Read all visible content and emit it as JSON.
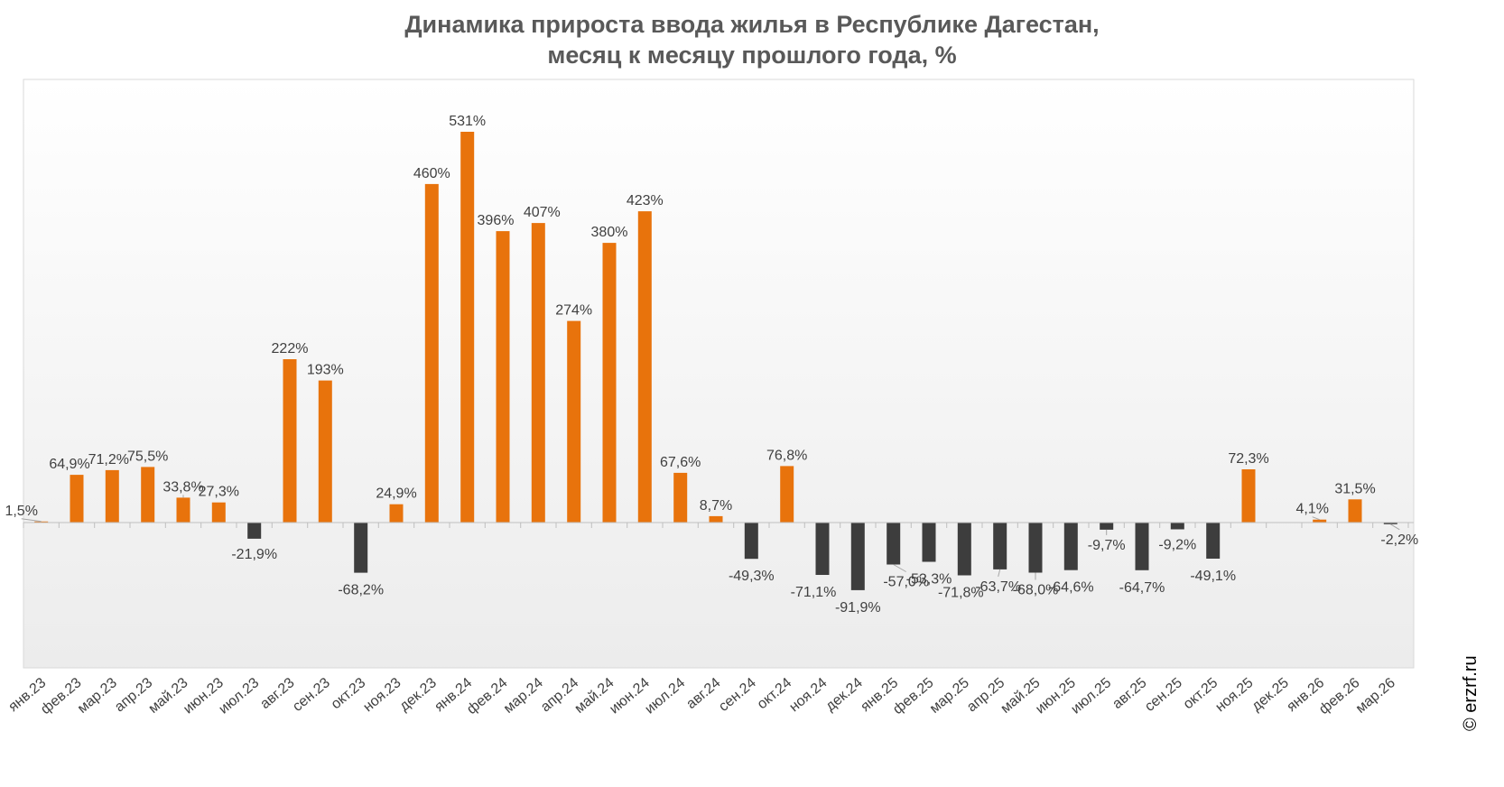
{
  "title_line1": "Динамика прироста ввода жилья в Республике Дагестан,",
  "title_line2": "месяц к месяцу прошлого года, %",
  "copyright": "© erzrf.ru",
  "colors": {
    "positive": "#e8730c",
    "negative": "#3d3d3d",
    "label": "#404040",
    "axis": "#bfbfbf",
    "plot_border": "#d9d9d9"
  },
  "chart_data": {
    "type": "bar",
    "title": "Динамика прироста ввода жилья в Республике Дагестан, месяц к месяцу прошлого года, %",
    "xlabel": "",
    "ylabel": "",
    "grid": false,
    "legend": "none",
    "categories": [
      "янв.23",
      "фев.23",
      "мар.23",
      "апр.23",
      "май.23",
      "июн.23",
      "июл.23",
      "авг.23",
      "сен.23",
      "окт.23",
      "ноя.23",
      "дек.23",
      "янв.24",
      "фев.24",
      "мар.24",
      "апр.24",
      "май.24",
      "июн.24",
      "июл.24",
      "авг.24",
      "сен.24",
      "окт.24",
      "ноя.24",
      "дек.24",
      "янв.25",
      "фев.25",
      "мар.25",
      "апр.25",
      "май.25",
      "июн.25",
      "июл.25",
      "авг.25",
      "сен.25",
      "окт.25",
      "ноя.25",
      "дек.25",
      "янв.26",
      "фев.26",
      "мар.26"
    ],
    "values": [
      1.5,
      64.9,
      71.2,
      75.5,
      33.8,
      27.3,
      -21.9,
      222,
      193,
      -68.2,
      24.9,
      460,
      531,
      396,
      407,
      274,
      380,
      423,
      67.6,
      8.7,
      -49.3,
      76.8,
      -71.1,
      -91.9,
      -57.0,
      -53.3,
      -71.8,
      -63.7,
      -68.0,
      -64.6,
      -9.7,
      -64.7,
      -9.2,
      -49.1,
      72.3,
      null,
      4.1,
      31.5,
      -2.2
    ],
    "labels": [
      "1,5%",
      "64,9%",
      "71,2%",
      "75,5%",
      "33,8%",
      "27,3%",
      "-21,9%",
      "222%",
      "193%",
      "-68,2%",
      "24,9%",
      "460%",
      "531%",
      "396%",
      "407%",
      "274%",
      "380%",
      "423%",
      "67,6%",
      "8,7%",
      "-49,3%",
      "76,8%",
      "-71,1%",
      "-91,9%",
      "-57,0%",
      "-53,3%",
      "-71,8%",
      "-63,7%",
      "-68,0%",
      "-64,6%",
      "-9,7%",
      "-64,7%",
      "-9,2%",
      "-49,1%",
      "72,3%",
      "",
      "4,1%",
      "31,5%",
      "-2,2%"
    ],
    "ylim": [
      -200,
      600
    ]
  }
}
